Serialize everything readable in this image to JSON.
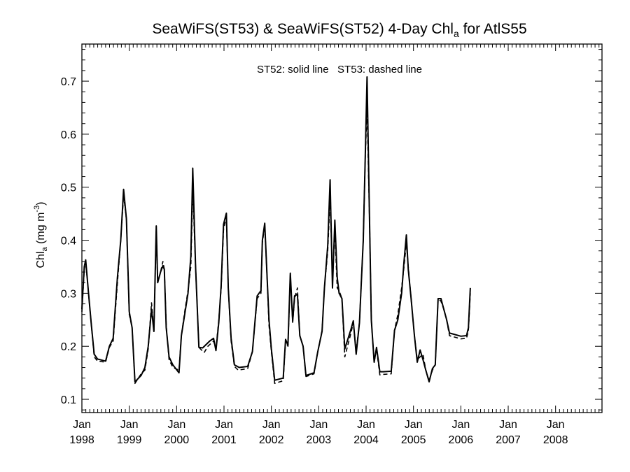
{
  "chart_data": {
    "type": "line",
    "title_prefix": "SeaWiFS(ST53) & SeaWiFS(ST52) 4-Day Chl",
    "title_sub": "a",
    "title_suffix": " for AtlS55",
    "ylabel_main": "Chl",
    "ylabel_sub": "a",
    "ylabel_unit": " (mg m",
    "ylabel_sup": "-3",
    "ylabel_close": ")",
    "annotation": "ST52: solid line   ST53: dashed line",
    "ylim": [
      0.075,
      0.77
    ],
    "yticks": [
      "0.1",
      "0.2",
      "0.3",
      "0.4",
      "0.5",
      "0.6",
      "0.7"
    ],
    "xlim": [
      1998.0,
      2008.98
    ],
    "xtick_labels": [
      {
        "month": "Jan",
        "year": "1998"
      },
      {
        "month": "Jan",
        "year": "1999"
      },
      {
        "month": "Jan",
        "year": "2000"
      },
      {
        "month": "Jan",
        "year": "2001"
      },
      {
        "month": "Jan",
        "year": "2002"
      },
      {
        "month": "Jan",
        "year": "2003"
      },
      {
        "month": "Jan",
        "year": "2004"
      },
      {
        "month": "Jan",
        "year": "2005"
      },
      {
        "month": "Jan",
        "year": "2006"
      },
      {
        "month": "Jan",
        "year": "2007"
      },
      {
        "month": "Jan",
        "year": "2008"
      }
    ],
    "grid": false,
    "series": [
      {
        "name": "ST52",
        "style": "solid",
        "points": [
          [
            1998.0,
            0.27
          ],
          [
            1998.05,
            0.35
          ],
          [
            1998.08,
            0.363
          ],
          [
            1998.14,
            0.3
          ],
          [
            1998.2,
            0.24
          ],
          [
            1998.26,
            0.185
          ],
          [
            1998.33,
            0.176
          ],
          [
            1998.5,
            0.172
          ],
          [
            1998.58,
            0.2
          ],
          [
            1998.66,
            0.215
          ],
          [
            1998.75,
            0.33
          ],
          [
            1998.82,
            0.4
          ],
          [
            1998.88,
            0.496
          ],
          [
            1998.94,
            0.44
          ],
          [
            1999.0,
            0.265
          ],
          [
            1999.06,
            0.235
          ],
          [
            1999.12,
            0.133
          ],
          [
            1999.25,
            0.145
          ],
          [
            1999.33,
            0.16
          ],
          [
            1999.4,
            0.2
          ],
          [
            1999.47,
            0.27
          ],
          [
            1999.52,
            0.228
          ],
          [
            1999.57,
            0.427
          ],
          [
            1999.6,
            0.32
          ],
          [
            1999.66,
            0.34
          ],
          [
            1999.71,
            0.352
          ],
          [
            1999.74,
            0.345
          ],
          [
            1999.78,
            0.235
          ],
          [
            1999.84,
            0.18
          ],
          [
            1999.92,
            0.165
          ],
          [
            2000.05,
            0.15
          ],
          [
            2000.1,
            0.22
          ],
          [
            2000.17,
            0.26
          ],
          [
            2000.24,
            0.3
          ],
          [
            2000.3,
            0.37
          ],
          [
            2000.34,
            0.536
          ],
          [
            2000.4,
            0.35
          ],
          [
            2000.47,
            0.198
          ],
          [
            2000.55,
            0.197
          ],
          [
            2000.7,
            0.21
          ],
          [
            2000.78,
            0.215
          ],
          [
            2000.83,
            0.192
          ],
          [
            2000.89,
            0.245
          ],
          [
            2000.94,
            0.315
          ],
          [
            2000.99,
            0.43
          ],
          [
            2001.05,
            0.451
          ],
          [
            2001.09,
            0.31
          ],
          [
            2001.15,
            0.215
          ],
          [
            2001.22,
            0.165
          ],
          [
            2001.32,
            0.16
          ],
          [
            2001.5,
            0.162
          ],
          [
            2001.6,
            0.19
          ],
          [
            2001.7,
            0.295
          ],
          [
            2001.78,
            0.305
          ],
          [
            2001.81,
            0.4
          ],
          [
            2001.86,
            0.432
          ],
          [
            2001.9,
            0.35
          ],
          [
            2001.95,
            0.25
          ],
          [
            2002.0,
            0.195
          ],
          [
            2002.07,
            0.136
          ],
          [
            2002.25,
            0.14
          ],
          [
            2002.3,
            0.213
          ],
          [
            2002.35,
            0.202
          ],
          [
            2002.4,
            0.338
          ],
          [
            2002.45,
            0.247
          ],
          [
            2002.49,
            0.295
          ],
          [
            2002.55,
            0.298
          ],
          [
            2002.6,
            0.22
          ],
          [
            2002.67,
            0.2
          ],
          [
            2002.73,
            0.145
          ],
          [
            2002.8,
            0.147
          ],
          [
            2002.9,
            0.15
          ],
          [
            2002.98,
            0.19
          ],
          [
            2003.07,
            0.228
          ],
          [
            2003.12,
            0.31
          ],
          [
            2003.19,
            0.39
          ],
          [
            2003.24,
            0.514
          ],
          [
            2003.29,
            0.31
          ],
          [
            2003.34,
            0.438
          ],
          [
            2003.39,
            0.33
          ],
          [
            2003.43,
            0.3
          ],
          [
            2003.49,
            0.29
          ],
          [
            2003.55,
            0.195
          ],
          [
            2003.68,
            0.232
          ],
          [
            2003.73,
            0.248
          ],
          [
            2003.79,
            0.185
          ],
          [
            2003.86,
            0.245
          ],
          [
            2003.94,
            0.4
          ],
          [
            2003.98,
            0.55
          ],
          [
            2004.02,
            0.708
          ],
          [
            2004.07,
            0.45
          ],
          [
            2004.11,
            0.25
          ],
          [
            2004.17,
            0.17
          ],
          [
            2004.22,
            0.198
          ],
          [
            2004.29,
            0.152
          ],
          [
            2004.36,
            0.152
          ],
          [
            2004.53,
            0.153
          ],
          [
            2004.6,
            0.23
          ],
          [
            2004.67,
            0.25
          ],
          [
            2004.75,
            0.3
          ],
          [
            2004.8,
            0.36
          ],
          [
            2004.85,
            0.41
          ],
          [
            2004.89,
            0.345
          ],
          [
            2004.95,
            0.29
          ],
          [
            2005.02,
            0.22
          ],
          [
            2005.08,
            0.17
          ],
          [
            2005.14,
            0.193
          ],
          [
            2005.2,
            0.175
          ],
          [
            2005.26,
            0.155
          ],
          [
            2005.33,
            0.133
          ],
          [
            2005.4,
            0.158
          ],
          [
            2005.46,
            0.165
          ],
          [
            2005.52,
            0.29
          ],
          [
            2005.58,
            0.29
          ],
          [
            2005.64,
            0.27
          ],
          [
            2005.7,
            0.25
          ],
          [
            2005.76,
            0.225
          ],
          [
            2006.0,
            0.219
          ],
          [
            2006.12,
            0.22
          ],
          [
            2006.16,
            0.235
          ],
          [
            2006.2,
            0.31
          ]
        ]
      },
      {
        "name": "ST53",
        "style": "dashed",
        "points": [
          [
            1998.0,
            0.265
          ],
          [
            1998.05,
            0.345
          ],
          [
            1998.08,
            0.36
          ],
          [
            1998.14,
            0.3
          ],
          [
            1998.2,
            0.24
          ],
          [
            1998.26,
            0.18
          ],
          [
            1998.33,
            0.172
          ],
          [
            1998.5,
            0.17
          ],
          [
            1998.58,
            0.198
          ],
          [
            1998.66,
            0.21
          ],
          [
            1998.75,
            0.32
          ],
          [
            1998.82,
            0.4
          ],
          [
            1998.88,
            0.485
          ],
          [
            1998.94,
            0.44
          ],
          [
            1999.0,
            0.26
          ],
          [
            1999.06,
            0.235
          ],
          [
            1999.12,
            0.13
          ],
          [
            1999.25,
            0.148
          ],
          [
            1999.33,
            0.155
          ],
          [
            1999.4,
            0.195
          ],
          [
            1999.47,
            0.282
          ],
          [
            1999.52,
            0.228
          ],
          [
            1999.57,
            0.42
          ],
          [
            1999.6,
            0.32
          ],
          [
            1999.66,
            0.34
          ],
          [
            1999.71,
            0.36
          ],
          [
            1999.74,
            0.345
          ],
          [
            1999.78,
            0.24
          ],
          [
            1999.84,
            0.175
          ],
          [
            1999.92,
            0.16
          ],
          [
            2000.05,
            0.155
          ],
          [
            2000.1,
            0.22
          ],
          [
            2000.17,
            0.265
          ],
          [
            2000.24,
            0.305
          ],
          [
            2000.3,
            0.35
          ],
          [
            2000.34,
            0.5
          ],
          [
            2000.4,
            0.35
          ],
          [
            2000.47,
            0.198
          ],
          [
            2000.58,
            0.188
          ],
          [
            2000.66,
            0.2
          ],
          [
            2000.78,
            0.21
          ],
          [
            2000.83,
            0.195
          ],
          [
            2000.89,
            0.25
          ],
          [
            2000.94,
            0.31
          ],
          [
            2000.99,
            0.42
          ],
          [
            2001.05,
            0.445
          ],
          [
            2001.09,
            0.31
          ],
          [
            2001.15,
            0.21
          ],
          [
            2001.22,
            0.162
          ],
          [
            2001.3,
            0.155
          ],
          [
            2001.5,
            0.158
          ],
          [
            2001.6,
            0.19
          ],
          [
            2001.7,
            0.29
          ],
          [
            2001.78,
            0.3
          ],
          [
            2001.81,
            0.395
          ],
          [
            2001.86,
            0.428
          ],
          [
            2001.9,
            0.35
          ],
          [
            2001.95,
            0.24
          ],
          [
            2002.0,
            0.19
          ],
          [
            2002.07,
            0.13
          ],
          [
            2002.25,
            0.135
          ],
          [
            2002.3,
            0.21
          ],
          [
            2002.35,
            0.2
          ],
          [
            2002.4,
            0.335
          ],
          [
            2002.45,
            0.245
          ],
          [
            2002.49,
            0.29
          ],
          [
            2002.55,
            0.31
          ],
          [
            2002.6,
            0.22
          ],
          [
            2002.67,
            0.2
          ],
          [
            2002.73,
            0.143
          ],
          [
            2002.8,
            0.145
          ],
          [
            2002.9,
            0.148
          ],
          [
            2002.98,
            0.19
          ],
          [
            2003.07,
            0.23
          ],
          [
            2003.12,
            0.31
          ],
          [
            2003.19,
            0.38
          ],
          [
            2003.24,
            0.48
          ],
          [
            2003.29,
            0.33
          ],
          [
            2003.34,
            0.42
          ],
          [
            2003.39,
            0.31
          ],
          [
            2003.43,
            0.305
          ],
          [
            2003.49,
            0.29
          ],
          [
            2003.55,
            0.18
          ],
          [
            2003.68,
            0.225
          ],
          [
            2003.73,
            0.245
          ],
          [
            2003.79,
            0.19
          ],
          [
            2003.86,
            0.245
          ],
          [
            2003.94,
            0.4
          ],
          [
            2003.98,
            0.55
          ],
          [
            2004.02,
            0.65
          ],
          [
            2004.07,
            0.45
          ],
          [
            2004.11,
            0.25
          ],
          [
            2004.17,
            0.17
          ],
          [
            2004.22,
            0.195
          ],
          [
            2004.29,
            0.146
          ],
          [
            2004.36,
            0.147
          ],
          [
            2004.53,
            0.148
          ],
          [
            2004.6,
            0.23
          ],
          [
            2004.67,
            0.26
          ],
          [
            2004.75,
            0.31
          ],
          [
            2004.8,
            0.35
          ],
          [
            2004.85,
            0.395
          ],
          [
            2004.89,
            0.35
          ],
          [
            2004.95,
            0.29
          ],
          [
            2005.02,
            0.22
          ],
          [
            2005.08,
            0.175
          ],
          [
            2005.14,
            0.18
          ],
          [
            2005.2,
            0.185
          ],
          [
            2005.26,
            0.155
          ],
          [
            2005.33,
            0.135
          ],
          [
            2005.4,
            0.155
          ],
          [
            2005.46,
            0.165
          ],
          [
            2005.52,
            0.29
          ],
          [
            2005.58,
            0.285
          ],
          [
            2005.64,
            0.27
          ],
          [
            2005.7,
            0.25
          ],
          [
            2005.76,
            0.22
          ],
          [
            2006.0,
            0.214
          ],
          [
            2006.12,
            0.215
          ],
          [
            2006.16,
            0.23
          ],
          [
            2006.2,
            0.3
          ]
        ]
      }
    ]
  }
}
